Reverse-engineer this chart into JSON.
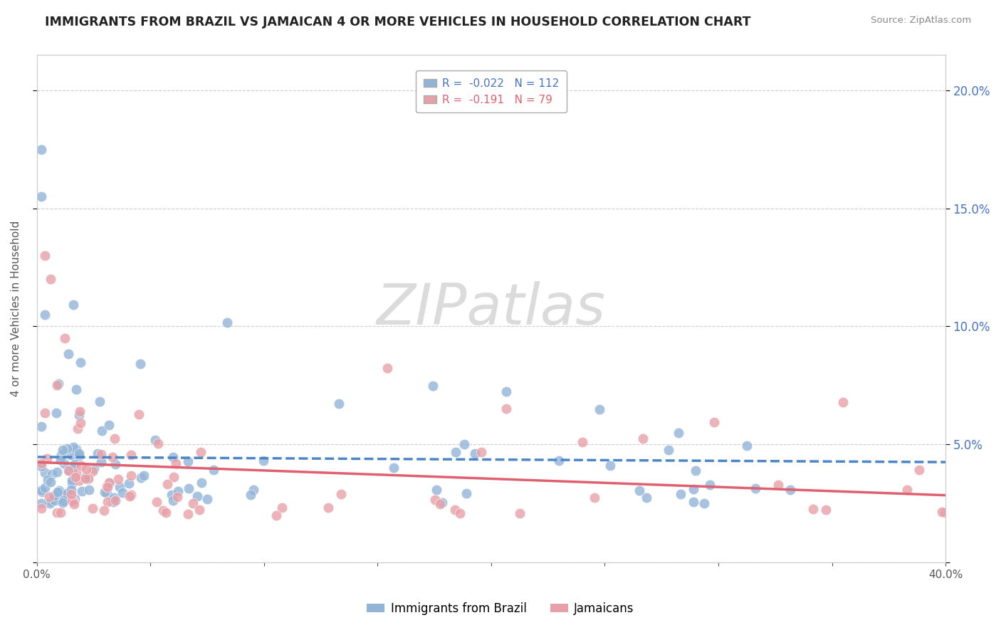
{
  "title": "IMMIGRANTS FROM BRAZIL VS JAMAICAN 4 OR MORE VEHICLES IN HOUSEHOLD CORRELATION CHART",
  "source": "Source: ZipAtlas.com",
  "ylabel": "4 or more Vehicles in Household",
  "xlim": [
    0.0,
    0.4
  ],
  "ylim": [
    0.0,
    0.215
  ],
  "brazil_R": -0.022,
  "brazil_N": 112,
  "jamaica_R": -0.191,
  "jamaica_N": 79,
  "brazil_color": "#92b4d7",
  "jamaica_color": "#e8a0a8",
  "trend_brazil_color": "#4a86c8",
  "trend_jamaica_color": "#e06070",
  "legend_label_brazil": "Immigrants from Brazil",
  "legend_label_jamaica": "Jamaicans",
  "watermark": "ZIPatlas",
  "watermark_color": "#d8d8d8"
}
